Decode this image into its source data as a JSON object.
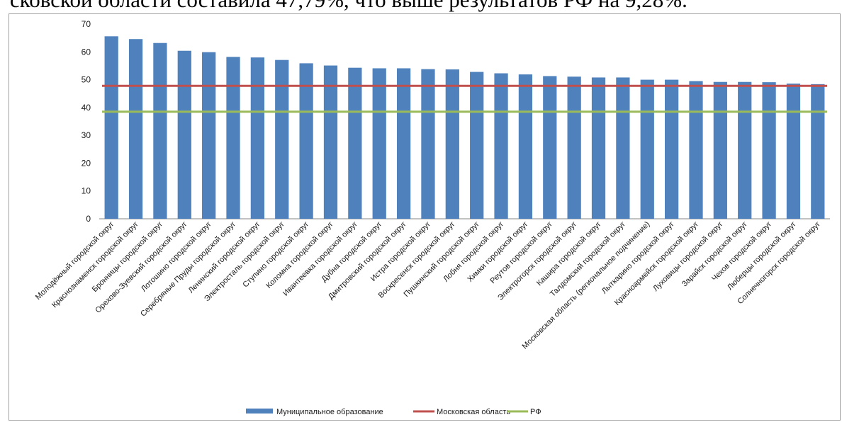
{
  "heading_fragment": "сковской области составила 47,79%, что выше результатов РФ на 9,28%.",
  "chart_data": {
    "type": "bar",
    "categories": [
      "Молодёжный городской округ",
      "Краснознаменск городской округ",
      "Бронницы городской округ",
      "Орехово-Зуевский городской округ",
      "Лотошино городской округ",
      "Серебряные Пруды городской округ",
      "Ленинский городской округ",
      "Электросталь городской округ",
      "Ступино городской округ",
      "Коломна городской округ",
      "Ивантеевка городской округ",
      "Дубна городской округ",
      "Дмитровский городской округ",
      "Истра городской округ",
      "Воскресенск городской округ",
      "Пушкинский городской округ",
      "Лобня городской округ",
      "Химки городской округ",
      "Реутов городской округ",
      "Электрогорск городской округ",
      "Кашира городской округ",
      "Талдомский городской округ",
      "Московская область (региональное подчинение)",
      "Лыткарино городской округ",
      "Красноармейск городской округ",
      "Луховицы городской округ",
      "Зарайск городской округ",
      "Чехов городской округ",
      "Люберцы городской округ",
      "Солнечногорск городской округ"
    ],
    "series": [
      {
        "name": "Муниципальное образование",
        "kind": "bar",
        "color": "#4f81bd",
        "values": [
          65.6,
          64.6,
          63.2,
          60.4,
          59.9,
          58.2,
          58.0,
          57.1,
          55.9,
          55.1,
          54.3,
          54.1,
          54.1,
          53.8,
          53.7,
          52.8,
          52.3,
          51.9,
          51.3,
          51.1,
          50.8,
          50.8,
          50.0,
          50.0,
          49.5,
          49.2,
          49.2,
          49.1,
          48.6,
          48.4
        ]
      },
      {
        "name": "Московская область",
        "kind": "line",
        "color": "#c0504d",
        "value": 47.79
      },
      {
        "name": "РФ",
        "kind": "line",
        "color": "#9bbb59",
        "value": 38.51
      }
    ],
    "y_ticks": [
      "0",
      "10",
      "20",
      "30",
      "40",
      "50",
      "60",
      "70"
    ],
    "ylim": [
      0,
      70
    ],
    "grid": false,
    "legend_position": "bottom"
  }
}
